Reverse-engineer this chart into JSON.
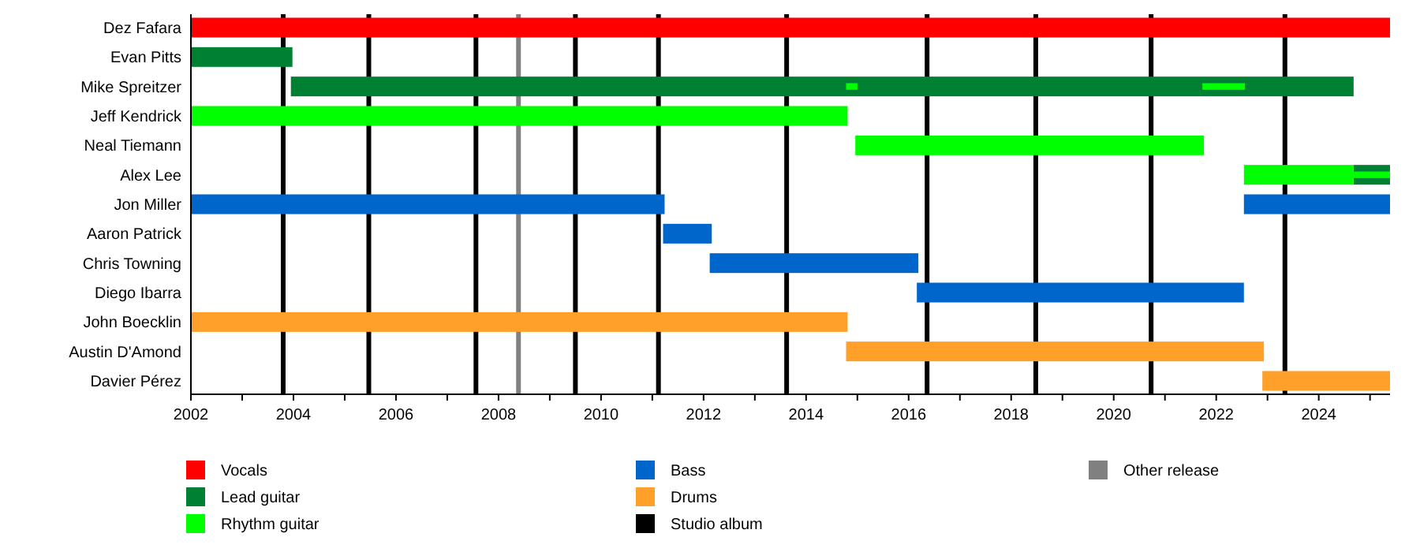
{
  "chart_data": {
    "type": "bar",
    "orientation": "horizontal",
    "categories": [
      "Dez Fafara",
      "Evan Pitts",
      "Mike Spreitzer",
      "Jeff Kendrick",
      "Neal Tiemann",
      "Alex Lee",
      "Jon Miller",
      "Aaron Patrick",
      "Chris Towning",
      "Diego Ibarra",
      "John Boecklin",
      "Austin D'Amond",
      "Davier Pérez"
    ],
    "series": [
      {
        "name": "Vocals",
        "color": "#ff0000",
        "base": [
          2002,
          null,
          null,
          null,
          null,
          null,
          null,
          null,
          null,
          null,
          null,
          null,
          null
        ],
        "values": [
          23.39,
          null,
          null,
          null,
          null,
          null,
          null,
          null,
          null,
          null,
          null,
          null,
          null
        ]
      },
      {
        "name": "Lead guitar",
        "color": "#008033",
        "base": [
          null,
          2002,
          2003.95,
          null,
          null,
          2024.68,
          null,
          null,
          null,
          null,
          null,
          null,
          null
        ],
        "values": [
          null,
          1.98,
          20.73,
          null,
          null,
          0.71,
          null,
          null,
          null,
          null,
          null,
          null,
          null
        ]
      },
      {
        "name": "Rhythm guitar",
        "color": "#00ff00",
        "base": [
          null,
          null,
          2014.78,
          2002,
          2014.96,
          2022.54,
          null,
          null,
          null,
          null,
          null,
          null,
          null
        ],
        "values": [
          null,
          null,
          0.22,
          12.81,
          6.8,
          2.14,
          null,
          null,
          null,
          null,
          null,
          null,
          null
        ]
      },
      {
        "color": "#00ff00",
        "base": [
          null,
          null,
          2021.73,
          null,
          null,
          2024.68,
          null,
          null,
          null,
          null,
          null,
          null,
          null
        ],
        "values": [
          null,
          null,
          0.83,
          null,
          null,
          0.71,
          null,
          null,
          null,
          null,
          null,
          null,
          null
        ]
      },
      {
        "name": "Bass",
        "color": "#0066cc",
        "base": [
          null,
          null,
          null,
          null,
          null,
          null,
          2002,
          2011.21,
          2012.12,
          2016.16,
          null,
          null,
          null
        ],
        "values": [
          null,
          null,
          null,
          null,
          null,
          null,
          9.24,
          0.95,
          4.07,
          6.38,
          null,
          null,
          null
        ]
      },
      {
        "color": "#0066cc",
        "base": [
          null,
          null,
          null,
          null,
          null,
          null,
          2022.54,
          null,
          null,
          null,
          null,
          null,
          null
        ],
        "values": [
          null,
          null,
          null,
          null,
          null,
          null,
          2.85,
          null,
          null,
          null,
          null,
          null,
          null
        ]
      },
      {
        "name": "Drums",
        "color": "#ffa02a",
        "base": [
          null,
          null,
          null,
          null,
          null,
          null,
          null,
          null,
          null,
          null,
          2002,
          2014.78,
          2022.9
        ],
        "values": [
          null,
          null,
          null,
          null,
          null,
          null,
          null,
          null,
          null,
          null,
          12.81,
          8.15,
          2.49
        ]
      }
    ],
    "ref_lines": [
      {
        "axis": "x",
        "value": 2003.8,
        "color": "#000000",
        "label": "Studio album"
      },
      {
        "axis": "x",
        "value": 2005.47,
        "color": "#000000"
      },
      {
        "axis": "x",
        "value": 2007.56,
        "color": "#000000"
      },
      {
        "axis": "x",
        "value": 2008.39,
        "color": "#808080",
        "label": "Other release"
      },
      {
        "axis": "x",
        "value": 2009.5,
        "color": "#000000"
      },
      {
        "axis": "x",
        "value": 2011.12,
        "color": "#000000"
      },
      {
        "axis": "x",
        "value": 2013.62,
        "color": "#000000"
      },
      {
        "axis": "x",
        "value": 2016.36,
        "color": "#000000"
      },
      {
        "axis": "x",
        "value": 2018.48,
        "color": "#000000"
      },
      {
        "axis": "x",
        "value": 2020.73,
        "color": "#000000"
      },
      {
        "axis": "x",
        "value": 2023.34,
        "color": "#000000"
      }
    ],
    "xlim": [
      2002,
      2025.39
    ],
    "xticks": [
      2002,
      {
        "value": 2003,
        "label": null
      },
      2004,
      {
        "value": 2005,
        "label": null
      },
      2006,
      {
        "value": 2007,
        "label": null
      },
      2008,
      {
        "value": 2009,
        "label": null
      },
      2010,
      {
        "value": 2011,
        "label": null
      },
      2012,
      {
        "value": 2013,
        "label": null
      },
      2014,
      {
        "value": 2015,
        "label": null
      },
      2016,
      {
        "value": 2017,
        "label": null
      },
      2018,
      {
        "value": 2019,
        "label": null
      },
      2020,
      {
        "value": 2021,
        "label": null
      },
      2022,
      {
        "value": 2023,
        "label": null
      },
      2024,
      {
        "value": 2025,
        "label": null
      }
    ],
    "grid": false,
    "legend": "bottom"
  }
}
